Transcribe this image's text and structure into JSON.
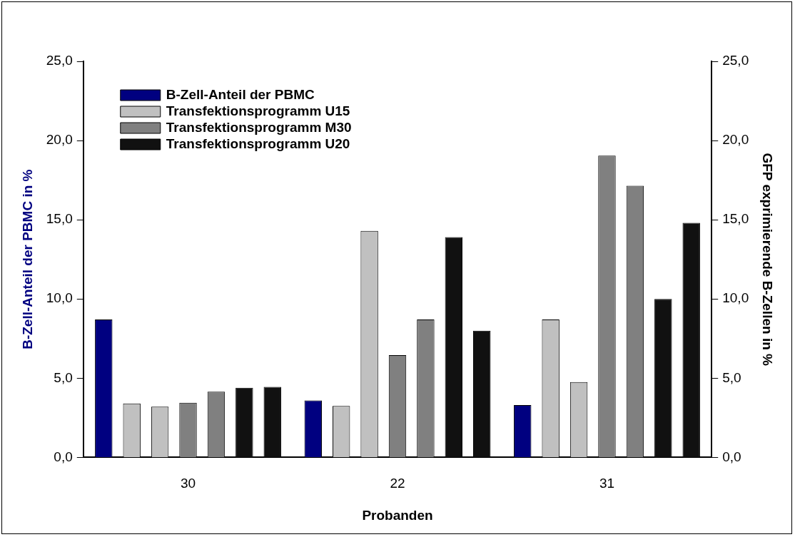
{
  "chart_data": {
    "type": "bar",
    "categories": [
      "30",
      "22",
      "31"
    ],
    "xlabel": "Probanden",
    "ylabel": "B-Zell-Anteil der PBMC in %",
    "y2label": "GFP exprimierende B-Zellen in %",
    "ylim": [
      0,
      25
    ],
    "yticks": [
      {
        "value": 0,
        "label": "0,0"
      },
      {
        "value": 5,
        "label": "5,0"
      },
      {
        "value": 10,
        "label": "10,0"
      },
      {
        "value": 15,
        "label": "15,0"
      },
      {
        "value": 20,
        "label": "20,0"
      },
      {
        "value": 25,
        "label": "25,0"
      }
    ],
    "y2lim": [
      0,
      25
    ],
    "y2ticks": [
      {
        "value": 0,
        "label": "0,0"
      },
      {
        "value": 5,
        "label": "5,0"
      },
      {
        "value": 10,
        "label": "10,0"
      },
      {
        "value": 15,
        "label": "15,0"
      },
      {
        "value": 20,
        "label": "20,0"
      },
      {
        "value": 25,
        "label": "25,0"
      }
    ],
    "grid": false,
    "legend": "top left",
    "series": [
      {
        "name": "B-Zell-Anteil der PBMC",
        "color": "#000080",
        "values": [
          8.7,
          3.6,
          3.3
        ]
      },
      {
        "name": "Transfektionsprogramm U15",
        "color": "#c0c0c0",
        "values": [
          3.4,
          3.25,
          8.7
        ]
      },
      {
        "color": "#c0c0c0",
        "values": [
          3.2,
          14.3,
          4.75
        ]
      },
      {
        "name": "Transfektionsprogramm M30",
        "color": "#808080",
        "values": [
          3.45,
          6.45,
          19.05
        ]
      },
      {
        "color": "#808080",
        "values": [
          4.15,
          8.7,
          17.15
        ]
      },
      {
        "name": "Transfektionsprogramm U20",
        "color": "#111111",
        "values": [
          4.4,
          13.9,
          10.0
        ]
      },
      {
        "color": "#111111",
        "values": [
          4.45,
          8.0,
          14.8
        ]
      }
    ]
  }
}
